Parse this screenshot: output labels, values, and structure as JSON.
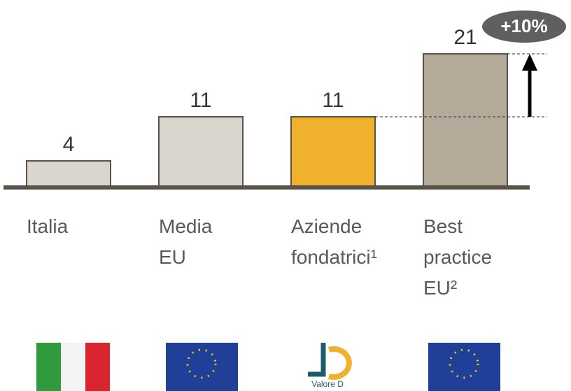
{
  "chart_data": {
    "type": "bar",
    "categories": [
      "Italia",
      "Media EU",
      "Aziende fondatrici¹",
      "Best practice EU²"
    ],
    "values": [
      4,
      11,
      11,
      21
    ],
    "colors": [
      "#d9d6ce",
      "#d9d6ce",
      "#f0b12c",
      "#b3aa9a"
    ],
    "annotation": "+10%"
  },
  "logos": {
    "valore_d": "Valore D"
  }
}
